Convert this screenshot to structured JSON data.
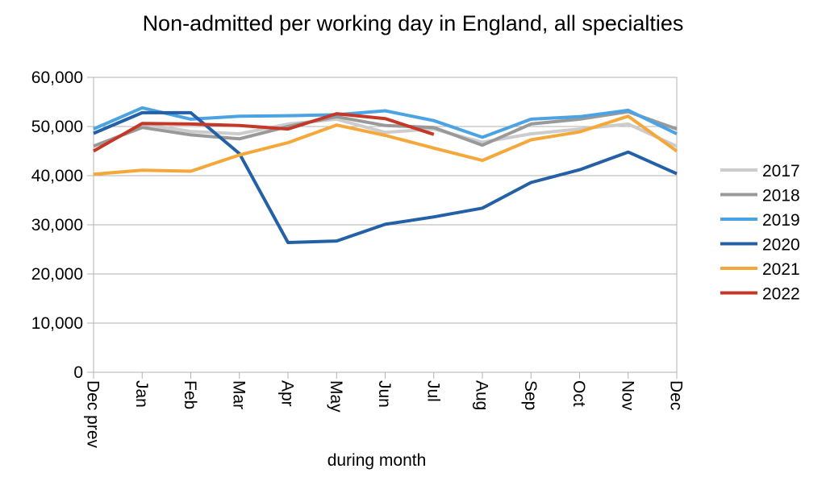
{
  "chart_data": {
    "type": "line",
    "title": "Non-admitted per working day in England, all specialties",
    "xlabel": "during  month",
    "ylabel": "",
    "categories": [
      "Dec prev",
      "Jan",
      "Feb",
      "Mar",
      "Apr",
      "May",
      "Jun",
      "Jul",
      "Aug",
      "Sep",
      "Oct",
      "Nov",
      "Dec"
    ],
    "ylim": [
      0,
      60000
    ],
    "yticks": [
      0,
      10000,
      20000,
      30000,
      40000,
      50000,
      60000
    ],
    "ytick_labels": [
      "0",
      "10,000",
      "20,000",
      "30,000",
      "40,000",
      "50,000",
      "60,000"
    ],
    "grid": true,
    "legend": "right",
    "series": [
      {
        "name": "2017",
        "color": "#cccccc",
        "values": [
          null,
          50500,
          49000,
          48500,
          50500,
          51500,
          48800,
          49500,
          46800,
          48500,
          49500,
          50500,
          46000
        ]
      },
      {
        "name": "2018",
        "color": "#999999",
        "values": [
          46000,
          49800,
          48300,
          47500,
          50000,
          52000,
          50200,
          49800,
          46200,
          50500,
          51500,
          53000,
          49500
        ]
      },
      {
        "name": "2019",
        "color": "#4ba3e3",
        "values": [
          49500,
          53800,
          51500,
          52100,
          52200,
          52400,
          53200,
          51200,
          47800,
          51500,
          52000,
          53300,
          48500
        ]
      },
      {
        "name": "2020",
        "color": "#2360a5",
        "values": [
          48600,
          52800,
          52800,
          44500,
          26400,
          26700,
          30100,
          31600,
          33400,
          38600,
          41200,
          44800,
          40400
        ]
      },
      {
        "name": "2021",
        "color": "#f5a83a",
        "values": [
          40300,
          41100,
          40900,
          44200,
          46700,
          50300,
          48200,
          45600,
          43100,
          47300,
          48900,
          52100,
          45000
        ]
      },
      {
        "name": "2022",
        "color": "#c53726",
        "values": [
          45000,
          50600,
          50500,
          50200,
          49500,
          52600,
          51600,
          48400,
          null,
          null,
          null,
          null,
          null
        ]
      }
    ]
  }
}
